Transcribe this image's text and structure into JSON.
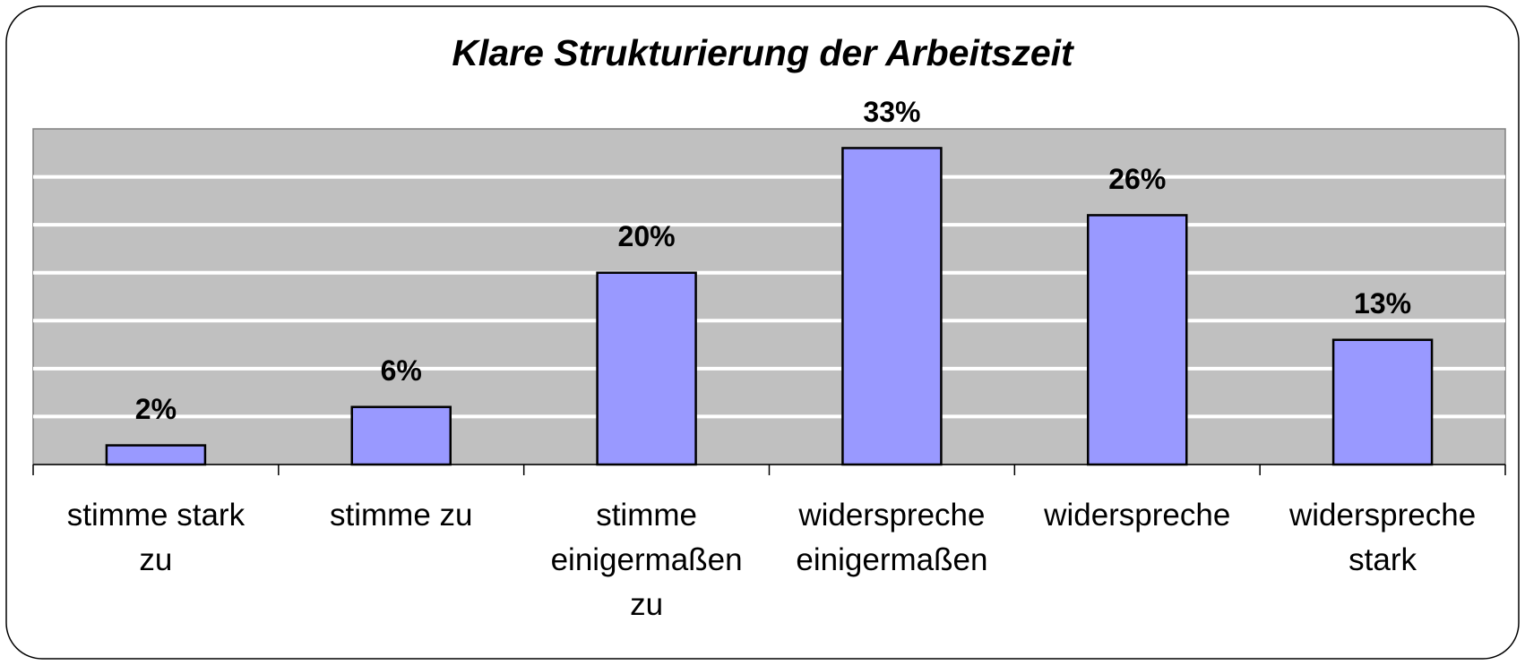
{
  "chart_data": {
    "type": "bar",
    "title": "Klare Strukturierung der Arbeitszeit",
    "categories": [
      "stimme stark\nzu",
      "stimme zu",
      "stimme\neinigermaßen\nzu",
      "widerspreche\neinigermaßen",
      "widerspreche",
      "widerspreche\nstark"
    ],
    "values": [
      2,
      6,
      20,
      33,
      26,
      13
    ],
    "value_labels": [
      "2%",
      "6%",
      "20%",
      "33%",
      "26%",
      "13%"
    ],
    "color": "#9999ff",
    "ylim": [
      0,
      35
    ],
    "yticks": [
      0,
      5,
      10,
      15,
      20,
      25,
      30,
      35
    ],
    "grid": true
  }
}
